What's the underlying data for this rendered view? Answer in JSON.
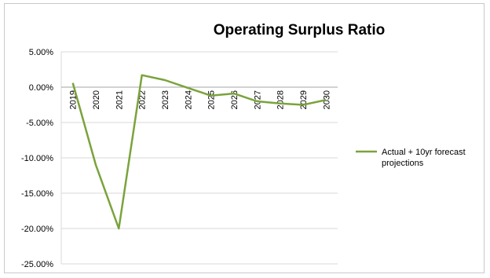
{
  "chart_data": {
    "type": "line",
    "title": "Operating Surplus Ratio",
    "xlabel": "",
    "ylabel": "",
    "categories": [
      "2019",
      "2020",
      "2021",
      "2022",
      "2023",
      "2024",
      "2025",
      "2026",
      "2027",
      "2028",
      "2029",
      "2030"
    ],
    "series": [
      {
        "name": "Actual + 10yr forecast projections",
        "values": [
          0.6,
          -11.0,
          -20.0,
          1.7,
          1.0,
          -0.1,
          -1.2,
          -0.9,
          -2.0,
          -2.3,
          -2.5,
          -1.8
        ]
      }
    ],
    "ylim": [
      -25,
      5
    ],
    "y_ticks": [
      5,
      0,
      -5,
      -10,
      -15,
      -20,
      -25
    ],
    "y_tick_labels": [
      "5.00%",
      "0.00%",
      "-5.00%",
      "-10.00%",
      "-15.00%",
      "-20.00%",
      "-25.00%"
    ],
    "grid": true,
    "legend_position": "right",
    "colors": {
      "series": "#7aa33c",
      "grid": "#d9d9d9"
    }
  }
}
